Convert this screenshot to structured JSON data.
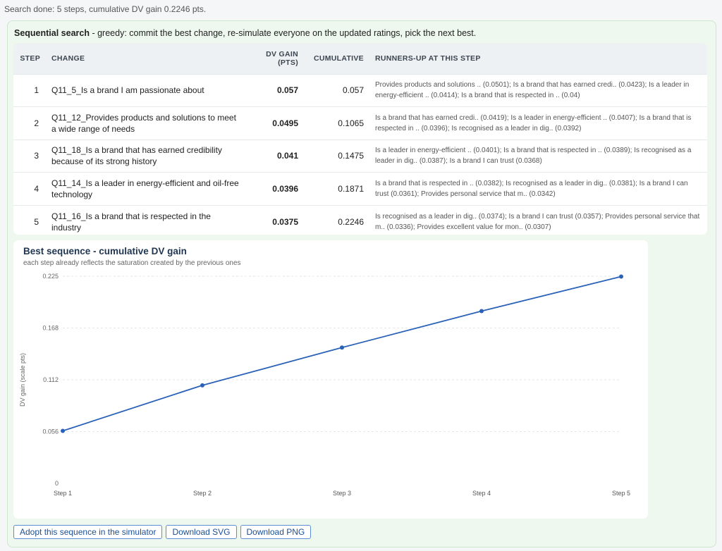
{
  "status": "Search done: 5 steps, cumulative DV gain 0.2246 pts.",
  "panel": {
    "heading_bold": "Sequential search",
    "heading_rest": " - greedy: commit the best change, re-simulate everyone on the updated ratings, pick the next best."
  },
  "table": {
    "headers": {
      "step": "STEP",
      "change": "CHANGE",
      "gain_line1": "DV GAIN",
      "gain_line2": "(PTS)",
      "cumulative": "CUMULATIVE",
      "runners": "RUNNERS-UP AT THIS STEP"
    },
    "rows": [
      {
        "step": "1",
        "change": "Q11_5_Is a brand I am passionate about",
        "gain": "0.057",
        "cumulative": "0.057",
        "runners": "Provides products and solutions .. (0.0501); Is a brand that has earned credi.. (0.0423); Is a leader in energy-efficient .. (0.0414); Is a brand that is respected in .. (0.04)"
      },
      {
        "step": "2",
        "change": "Q11_12_Provides products and solutions to meet a wide range of needs",
        "gain": "0.0495",
        "cumulative": "0.1065",
        "runners": "Is a brand that has earned credi.. (0.0419); Is a leader in energy-efficient .. (0.0407); Is a brand that is respected in .. (0.0396); Is recognised as a leader in dig.. (0.0392)"
      },
      {
        "step": "3",
        "change": "Q11_18_Is a brand that has earned credibility because of its strong history",
        "gain": "0.041",
        "cumulative": "0.1475",
        "runners": "Is a leader in energy-efficient .. (0.0401); Is a brand that is respected in .. (0.0389); Is recognised as a leader in dig.. (0.0387); Is a brand I can trust (0.0368)"
      },
      {
        "step": "4",
        "change": "Q11_14_Is a leader in energy-efficient and oil-free technology",
        "gain": "0.0396",
        "cumulative": "0.1871",
        "runners": "Is a brand that is respected in .. (0.0382); Is recognised as a leader in dig.. (0.0381); Is a brand I can trust (0.0361); Provides personal service that m.. (0.0342)"
      },
      {
        "step": "5",
        "change": "Q11_16_Is a brand that is respected in the industry",
        "gain": "0.0375",
        "cumulative": "0.2246",
        "runners": "Is recognised as a leader in dig.. (0.0374); Is a brand I can trust (0.0357); Provides personal service that m.. (0.0336); Provides excellent value for mon.. (0.0307)"
      }
    ]
  },
  "chart_data": {
    "type": "line",
    "title": "Best sequence - cumulative DV gain",
    "subtitle": "each step already reflects the saturation created by the previous ones",
    "ylabel": "DV gain (scale pts)",
    "xlabel": "",
    "categories": [
      "Step 1",
      "Step 2",
      "Step 3",
      "Step 4",
      "Step 5"
    ],
    "series": [
      {
        "values": [
          0.057,
          0.1065,
          0.1475,
          0.1871,
          0.2246
        ]
      }
    ],
    "ylim": [
      0,
      0.225
    ],
    "yticks": [
      "0",
      "0.056",
      "0.112",
      "0.168",
      "0.225"
    ],
    "grid": true,
    "line_color": "#2b62b8"
  },
  "buttons": {
    "adopt": "Adopt this sequence in the simulator",
    "svg": "Download SVG",
    "png": "Download PNG"
  }
}
